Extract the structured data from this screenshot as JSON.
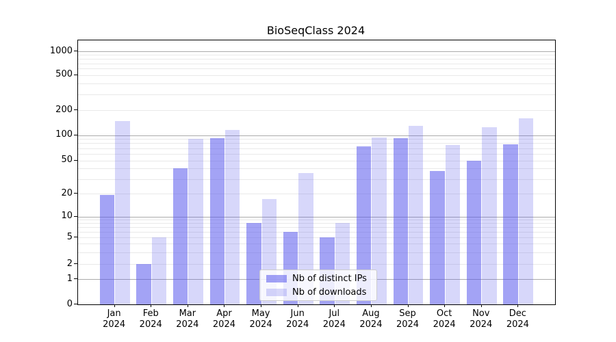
{
  "chart_data": {
    "type": "bar",
    "title": "BioSeqClass 2024",
    "categories": [
      "Jan",
      "Feb",
      "Mar",
      "Apr",
      "May",
      "Jun",
      "Jul",
      "Aug",
      "Sep",
      "Oct",
      "Nov",
      "Dec"
    ],
    "year_label": "2024",
    "series": [
      {
        "name": "Nb of distinct IPs",
        "color": "rgba(88,88,236,0.55)",
        "values": [
          19,
          2,
          40,
          92,
          8,
          6,
          5,
          74,
          92,
          37,
          50,
          78
        ]
      },
      {
        "name": "Nb of downloads",
        "color": "rgba(88,88,236,0.24)",
        "values": [
          148,
          5,
          90,
          115,
          17,
          35,
          8,
          93,
          130,
          76,
          125,
          160
        ]
      }
    ],
    "yticks": [
      0,
      1,
      2,
      5,
      10,
      20,
      50,
      100,
      200,
      500,
      1000
    ],
    "yscale": "symlog",
    "ylim": [
      0,
      1000
    ],
    "grid": true,
    "legend_position": "lower center"
  }
}
